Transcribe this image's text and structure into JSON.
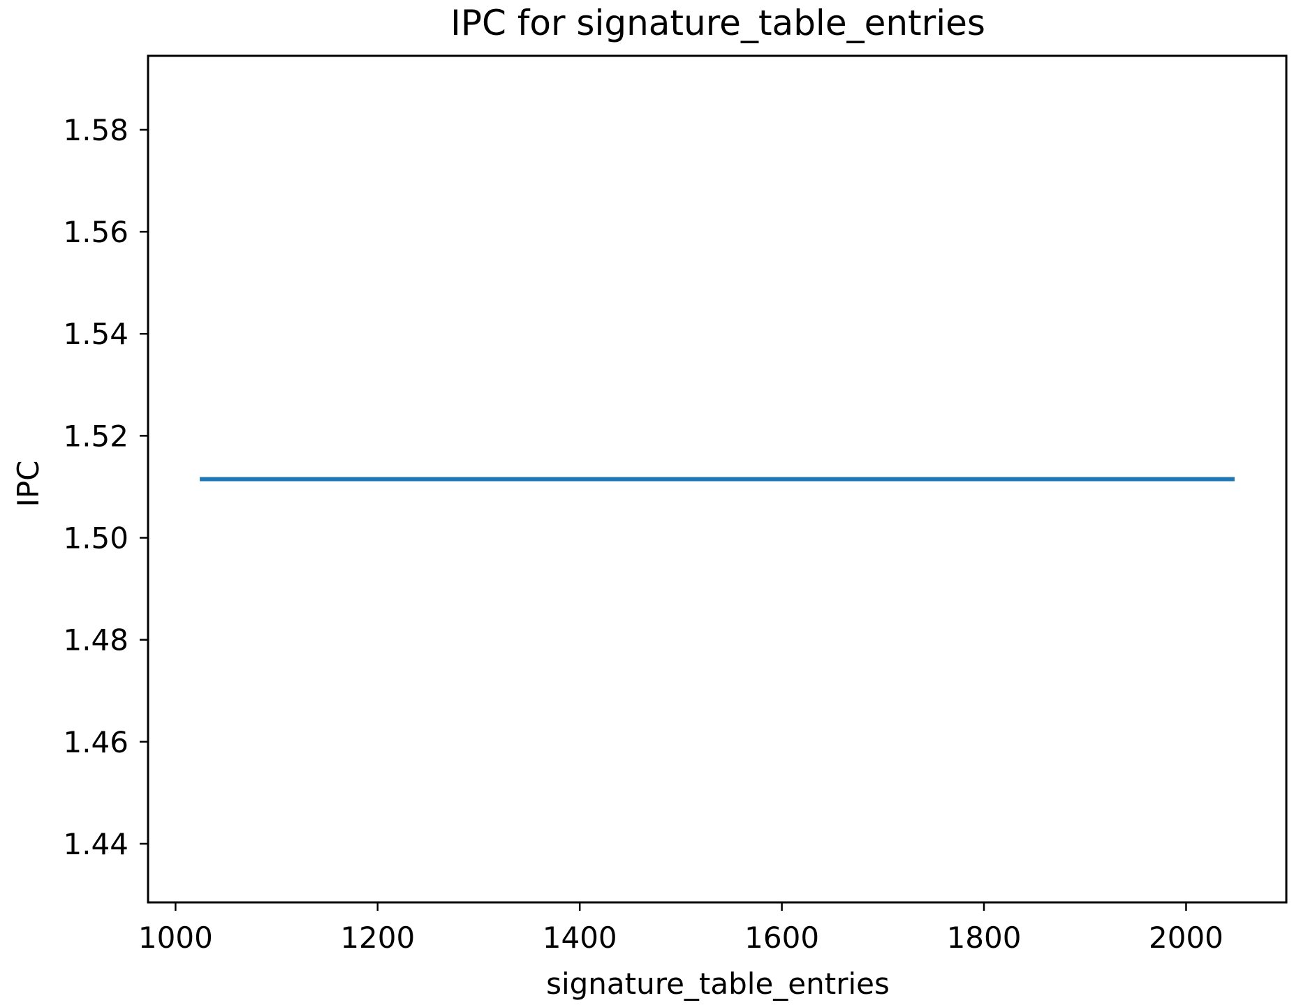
{
  "chart_data": {
    "type": "line",
    "title": "IPC for signature_table_entries",
    "xlabel": "signature_table_entries",
    "ylabel": "IPC",
    "x": [
      1024,
      2048
    ],
    "series": [
      {
        "name": "IPC",
        "values": [
          1.5115,
          1.5115
        ],
        "color": "#1f77b4"
      }
    ],
    "xlim": [
      972.8,
      2099.2
    ],
    "ylim": [
      1.4285,
      1.5945
    ],
    "xticks": [
      1000,
      1200,
      1400,
      1600,
      1800,
      2000
    ],
    "xtick_labels": [
      "1000",
      "1200",
      "1400",
      "1600",
      "1800",
      "2000"
    ],
    "yticks": [
      1.44,
      1.46,
      1.48,
      1.5,
      1.52,
      1.54,
      1.56,
      1.58
    ],
    "ytick_labels": [
      "1.44",
      "1.46",
      "1.48",
      "1.50",
      "1.52",
      "1.54",
      "1.56",
      "1.58"
    ],
    "grid": false,
    "legend": "none"
  }
}
